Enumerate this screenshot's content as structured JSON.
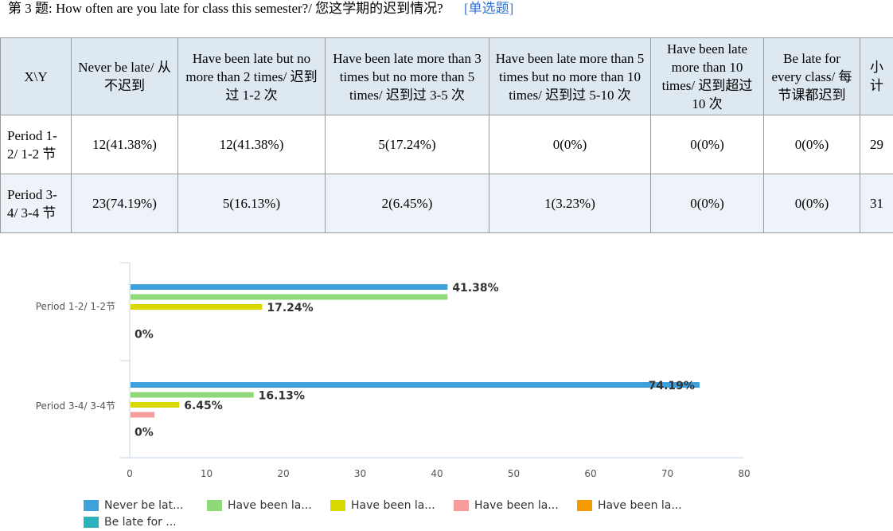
{
  "question": {
    "number_label": "第 3 题:",
    "text": "How often are you late for class this semester?/ 您这学期的迟到情况?",
    "type_label": "[单选题]"
  },
  "table": {
    "corner": "X\\Y",
    "subtotal_header": "小计",
    "headers": [
      "Never be late/ 从不迟到",
      "Have been late but no more than 2 times/ 迟到过 1-2 次",
      "Have been late more than 3 times but no more than 5 times/ 迟到过 3-5 次",
      "Have been late more than 5 times but no more than 10 times/ 迟到过 5-10 次",
      "Have been late more than 10 times/ 迟到超过 10 次",
      "Be late for every class/ 每节课都迟到"
    ],
    "rows": [
      {
        "label": "Period 1-2/ 1-2 节",
        "cells": [
          "12(41.38%)",
          "12(41.38%)",
          "5(17.24%)",
          "0(0%)",
          "0(0%)",
          "0(0%)"
        ],
        "subtotal": "29"
      },
      {
        "label": "Period 3-4/ 3-4 节",
        "cells": [
          "23(74.19%)",
          "5(16.13%)",
          "2(6.45%)",
          "1(3.23%)",
          "0(0%)",
          "0(0%)"
        ],
        "subtotal": "31"
      }
    ]
  },
  "chart_data": {
    "type": "bar",
    "orientation": "horizontal",
    "categories": [
      "Period 1-2/ 1-2节",
      "Period 3-4/ 3-4节"
    ],
    "xlim": [
      0,
      80
    ],
    "xticks": [
      0,
      10,
      20,
      30,
      40,
      50,
      60,
      70,
      80
    ],
    "grid": false,
    "legend_position": "bottom",
    "series": [
      {
        "name": "Never be lat...",
        "color": "#3fa1dc",
        "values": [
          41.38,
          74.19
        ],
        "labels": [
          "41.38%",
          "74.19%"
        ]
      },
      {
        "name": "Have been la...",
        "color": "#8fd97a",
        "values": [
          41.38,
          16.13
        ],
        "labels": [
          "",
          "16.13%"
        ]
      },
      {
        "name": "Have been la...",
        "color": "#d9d900",
        "values": [
          17.24,
          6.45
        ],
        "labels": [
          "17.24%",
          "6.45%"
        ]
      },
      {
        "name": "Have been la...",
        "color": "#f79c9c",
        "values": [
          0,
          3.23
        ],
        "labels": [
          "",
          ""
        ]
      },
      {
        "name": "Have been la...",
        "color": "#f59b00",
        "values": [
          0,
          0
        ],
        "labels": [
          "",
          ""
        ]
      },
      {
        "name": "Be late for ...",
        "color": "#2bb3c0",
        "values": [
          0,
          0
        ],
        "labels": [
          "0%",
          "0%"
        ]
      }
    ]
  }
}
